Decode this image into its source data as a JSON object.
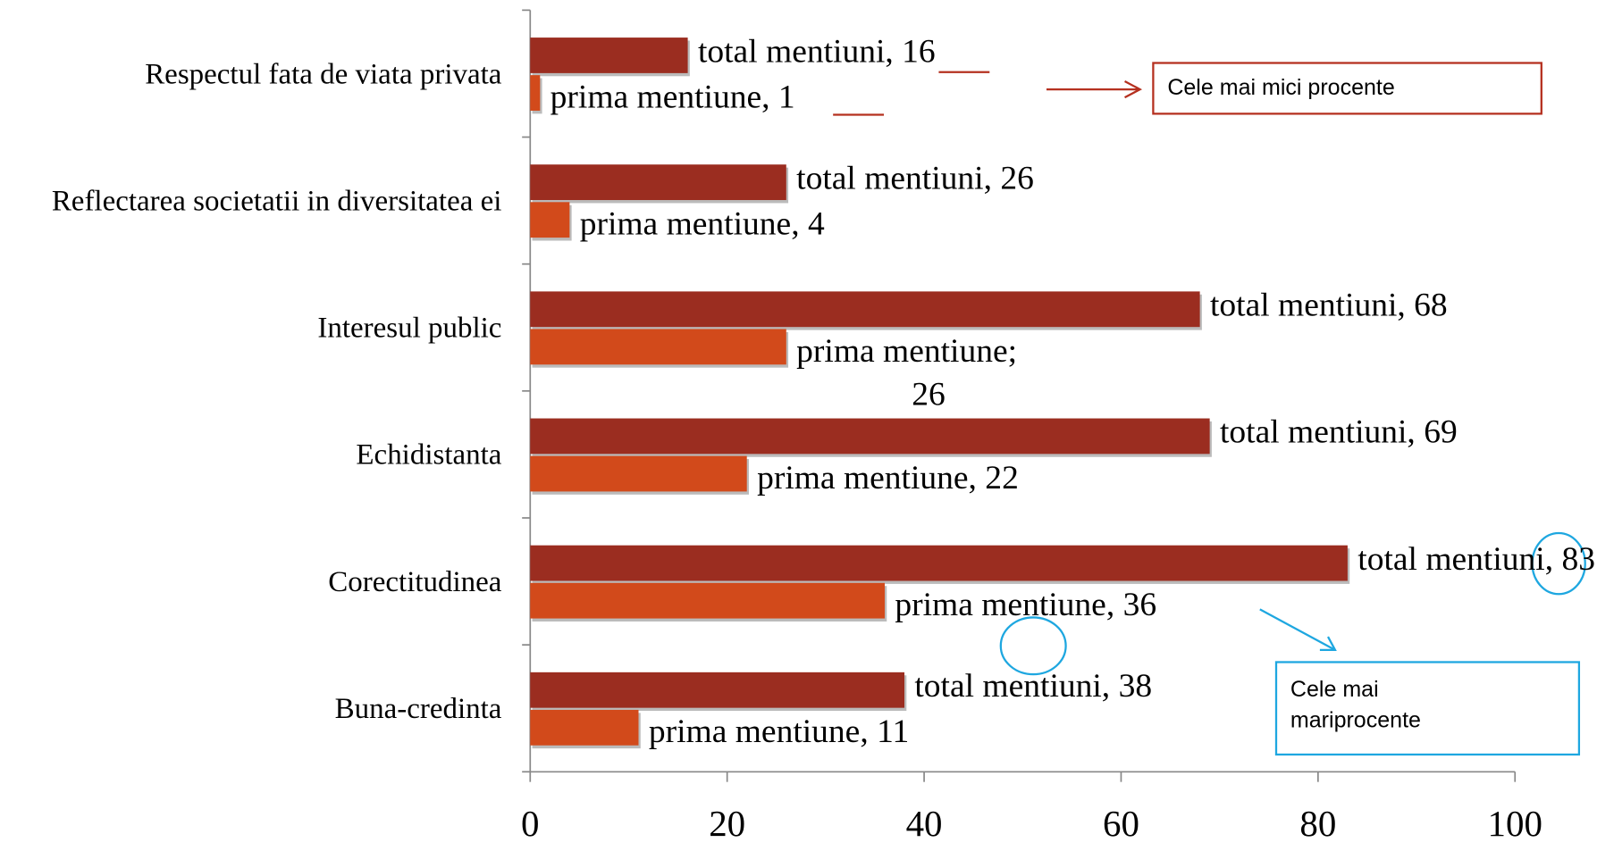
{
  "chart_data": {
    "type": "bar",
    "orientation": "horizontal",
    "categories": [
      "Respectul fata de viata privata",
      "Reflectarea societatii in diversitatea ei",
      "Interesul public",
      "Echidistanta",
      "Corectitudinea",
      "Buna-credinta"
    ],
    "series": [
      {
        "color": "#9b2d20",
        "values": [
          16,
          26,
          68,
          69,
          83,
          38
        ],
        "value_labels": [
          "total mentiuni, 16",
          "total mentiuni, 26",
          "total mentiuni, 68",
          "total mentiuni, 69",
          "total mentiuni, 83",
          "total mentiuni, 38"
        ]
      },
      {
        "color": "#d24a1b",
        "values": [
          1,
          4,
          26,
          22,
          36,
          11
        ],
        "value_labels": [
          "prima mentiune, 1",
          "prima mentiune, 4",
          "prima mentiune;\n26",
          "prima mentiune, 22",
          "prima mentiune, 36",
          "prima mentiune, 11"
        ]
      }
    ],
    "xlim": [
      0,
      100
    ],
    "xticks": [
      0,
      20,
      40,
      60,
      80,
      100
    ],
    "annotations": [
      "Cele mai mici procente",
      "Cele mai mariprocente"
    ]
  }
}
